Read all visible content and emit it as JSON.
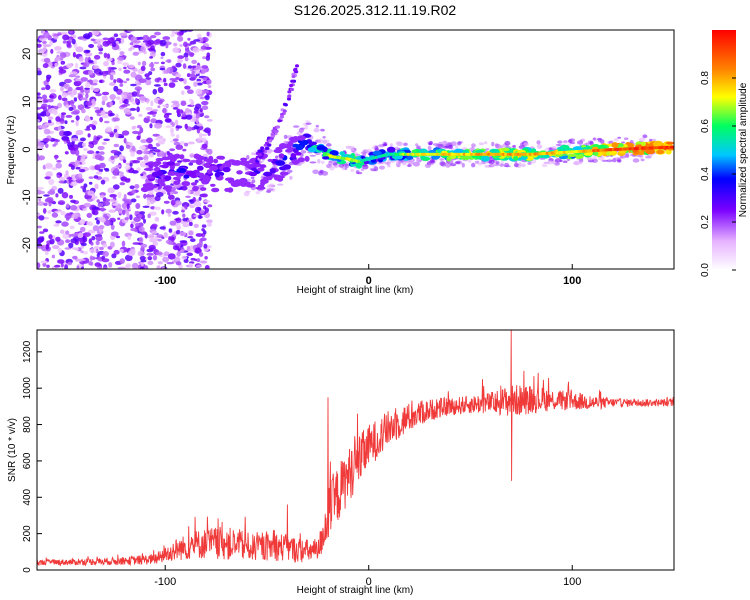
{
  "title": "S126.2025.312.11.19.R02",
  "colors": {
    "snr_line": "#f03a3a",
    "ridge": "#2aa0ff",
    "ridge_hot": "#ff3030",
    "noise": "#7a2cf0"
  },
  "chart_data": [
    {
      "type": "heatmap",
      "title": "",
      "xlabel": "Height of straight line (km)",
      "ylabel": "Frequency (Hz)",
      "xlim": [
        -163,
        150
      ],
      "ylim": [
        -25,
        25
      ],
      "xticks": [
        -100,
        0,
        100
      ],
      "yticks": [
        -20,
        -10,
        0,
        10,
        20
      ],
      "colorbar": {
        "label": "Normalized spectral amplitude",
        "range": [
          0,
          1
        ],
        "ticks": [
          0.0,
          0.2,
          0.4,
          0.6,
          0.8
        ]
      },
      "ridge": {
        "x": [
          -110,
          -100,
          -90,
          -80,
          -70,
          -60,
          -50,
          -40,
          -32,
          -25,
          -18,
          -10,
          -5,
          0,
          10,
          20,
          40,
          60,
          80,
          100,
          120,
          150
        ],
        "freq": [
          -5,
          -5,
          -4.5,
          -5,
          -5,
          -5,
          -4.5,
          -2,
          1.5,
          0,
          -1.5,
          -2,
          -2.5,
          -2,
          -1,
          -1,
          -1,
          -1,
          -1,
          -0.5,
          0,
          0.5
        ],
        "amplitude": [
          0.35,
          0.4,
          0.45,
          0.4,
          0.4,
          0.35,
          0.4,
          0.45,
          0.55,
          0.6,
          0.7,
          0.7,
          0.65,
          0.5,
          0.55,
          0.7,
          0.75,
          0.8,
          0.8,
          0.75,
          0.9,
          0.95
        ]
      },
      "side_branch": {
        "x": [
          -55,
          -48,
          -42,
          -38,
          -35
        ],
        "freq": [
          -2,
          2,
          8,
          13,
          18
        ]
      }
    },
    {
      "type": "line",
      "title": "",
      "xlabel": "Height of straight line (km)",
      "ylabel": "SNR (10 * v/v)",
      "xlim": [
        -163,
        150
      ],
      "ylim": [
        0,
        1320
      ],
      "xticks": [
        -100,
        0,
        100
      ],
      "yticks": [
        0,
        200,
        400,
        600,
        800,
        1000,
        1200
      ],
      "envelope": {
        "x": [
          -163,
          -140,
          -120,
          -105,
          -95,
          -85,
          -75,
          -65,
          -55,
          -45,
          -35,
          -25,
          -20,
          -15,
          -10,
          -5,
          0,
          10,
          20,
          30,
          40,
          50,
          60,
          70,
          80,
          90,
          100,
          110,
          120,
          130,
          140,
          150
        ],
        "mean": [
          40,
          45,
          50,
          60,
          110,
          140,
          150,
          140,
          120,
          130,
          110,
          100,
          300,
          420,
          520,
          600,
          680,
          780,
          840,
          880,
          900,
          910,
          920,
          930,
          940,
          935,
          930,
          920,
          920,
          920,
          920,
          920
        ],
        "spread": [
          15,
          18,
          22,
          30,
          60,
          80,
          90,
          90,
          70,
          80,
          70,
          60,
          150,
          160,
          150,
          140,
          120,
          100,
          80,
          60,
          50,
          50,
          60,
          90,
          80,
          60,
          50,
          40,
          25,
          20,
          20,
          20
        ]
      },
      "spikes": [
        {
          "x": -40,
          "y": 360
        },
        {
          "x": -20,
          "y": 950
        },
        {
          "x": 56,
          "y": 1050
        },
        {
          "x": 70,
          "y": 1320
        },
        {
          "x": 70,
          "y": 490
        },
        {
          "x": 98,
          "y": 1010
        }
      ]
    }
  ]
}
